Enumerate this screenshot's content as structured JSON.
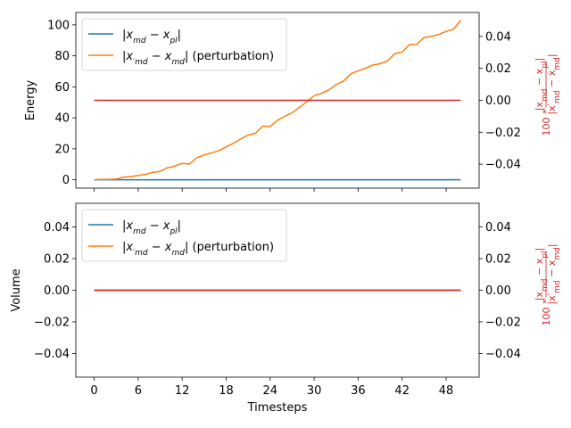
{
  "chart_data": [
    {
      "type": "line",
      "ylabel": "Energy",
      "y2label": "100 * |x_md − x_pl| / |x'_md − x_md|",
      "ylim": [
        -5.4,
        108
      ],
      "y2lim": [
        -0.055,
        0.055
      ],
      "xlim": [
        -2.5,
        52.5
      ],
      "yticks": [
        0,
        20,
        40,
        60,
        80,
        100
      ],
      "y2ticks": [
        -0.04,
        -0.02,
        0.0,
        0.02,
        0.04
      ],
      "xticks": [
        0,
        6,
        12,
        18,
        24,
        30,
        36,
        42,
        48
      ],
      "show_xtick_labels": false,
      "legend_position": "upper left",
      "series": [
        {
          "name": "|x_md − x_pl|",
          "color": "#1f77b4",
          "axis": "left",
          "x": [
            0,
            1,
            2,
            3,
            4,
            5,
            6,
            7,
            8,
            9,
            10,
            11,
            12,
            13,
            14,
            15,
            16,
            17,
            18,
            19,
            20,
            21,
            22,
            23,
            24,
            25,
            26,
            27,
            28,
            29,
            30,
            31,
            32,
            33,
            34,
            35,
            36,
            37,
            38,
            39,
            40,
            41,
            42,
            43,
            44,
            45,
            46,
            47,
            48,
            49,
            50
          ],
          "values": [
            0,
            0,
            0,
            0,
            0,
            0,
            0,
            0,
            0,
            0,
            0,
            0,
            0,
            0,
            0,
            0,
            0,
            0,
            0,
            0,
            0,
            0,
            0,
            0,
            0,
            0,
            0,
            0,
            0,
            0,
            0,
            0,
            0,
            0,
            0,
            0,
            0,
            0,
            0,
            0,
            0,
            0,
            0,
            0,
            0,
            0,
            0,
            0,
            0,
            0,
            0
          ]
        },
        {
          "name": "|x'_md − x_md| (perturbation)",
          "color": "#ff7f0e",
          "axis": "left",
          "x": [
            0,
            1,
            2,
            3,
            4,
            5,
            6,
            7,
            8,
            9,
            10,
            11,
            12,
            13,
            14,
            15,
            16,
            17,
            18,
            19,
            20,
            21,
            22,
            23,
            24,
            25,
            26,
            27,
            28,
            29,
            30,
            31,
            32,
            33,
            34,
            35,
            36,
            37,
            38,
            39,
            40,
            41,
            42,
            43,
            44,
            45,
            46,
            47,
            48,
            49,
            50
          ],
          "values": [
            0,
            0.2,
            0.3,
            0.5,
            1.7,
            2,
            2.8,
            3.5,
            4.8,
            5.4,
            7.8,
            8.8,
            10.6,
            10.2,
            14.2,
            16.1,
            17.3,
            18.8,
            21.2,
            23.6,
            26.4,
            28.9,
            30,
            34.7,
            34.4,
            38.4,
            41,
            43.2,
            46.8,
            50.4,
            54.3,
            55.8,
            58,
            61.4,
            63.7,
            68.3,
            70.3,
            72,
            74.1,
            74.9,
            76.7,
            81.5,
            82.4,
            87.3,
            87.4,
            91.9,
            92.6,
            93.8,
            95.8,
            97.1,
            103
          ]
        },
        {
          "name": "100 * ratio",
          "color": "#d62728",
          "axis": "right",
          "x": [
            0,
            50
          ],
          "values": [
            0,
            0
          ]
        }
      ],
      "legend": [
        {
          "label": "|x_md − x_pl|",
          "color": "#1f77b4"
        },
        {
          "label": "|x'_md − x_md| (perturbation)",
          "color": "#ff7f0e"
        }
      ]
    },
    {
      "type": "line",
      "xlabel": "Timesteps",
      "ylabel": "Volume",
      "y2label": "100 * |x_md − x_pl| / |x'_md − x_md|",
      "ylim": [
        -0.055,
        0.055
      ],
      "y2lim": [
        -0.055,
        0.055
      ],
      "xlim": [
        -2.5,
        52.5
      ],
      "yticks": [
        -0.04,
        -0.02,
        0.0,
        0.02,
        0.04
      ],
      "y2ticks": [
        -0.04,
        -0.02,
        0.0,
        0.02,
        0.04
      ],
      "xticks": [
        0,
        6,
        12,
        18,
        24,
        30,
        36,
        42,
        48
      ],
      "show_xtick_labels": true,
      "legend_position": "upper left",
      "series": [
        {
          "name": "|x_md − x_pl|",
          "color": "#1f77b4",
          "axis": "left",
          "x": [
            0,
            50
          ],
          "values": [
            0,
            0
          ]
        },
        {
          "name": "|x'_md − x_md| (perturbation)",
          "color": "#ff7f0e",
          "axis": "left",
          "x": [
            0,
            50
          ],
          "values": [
            0,
            0
          ]
        },
        {
          "name": "100 * ratio",
          "color": "#d62728",
          "axis": "right",
          "x": [
            0,
            50
          ],
          "values": [
            0,
            0
          ]
        }
      ],
      "legend": [
        {
          "label": "|x_md − x_pl|",
          "color": "#1f77b4"
        },
        {
          "label": "|x'_md − x_md| (perturbation)",
          "color": "#ff7f0e"
        }
      ]
    }
  ]
}
